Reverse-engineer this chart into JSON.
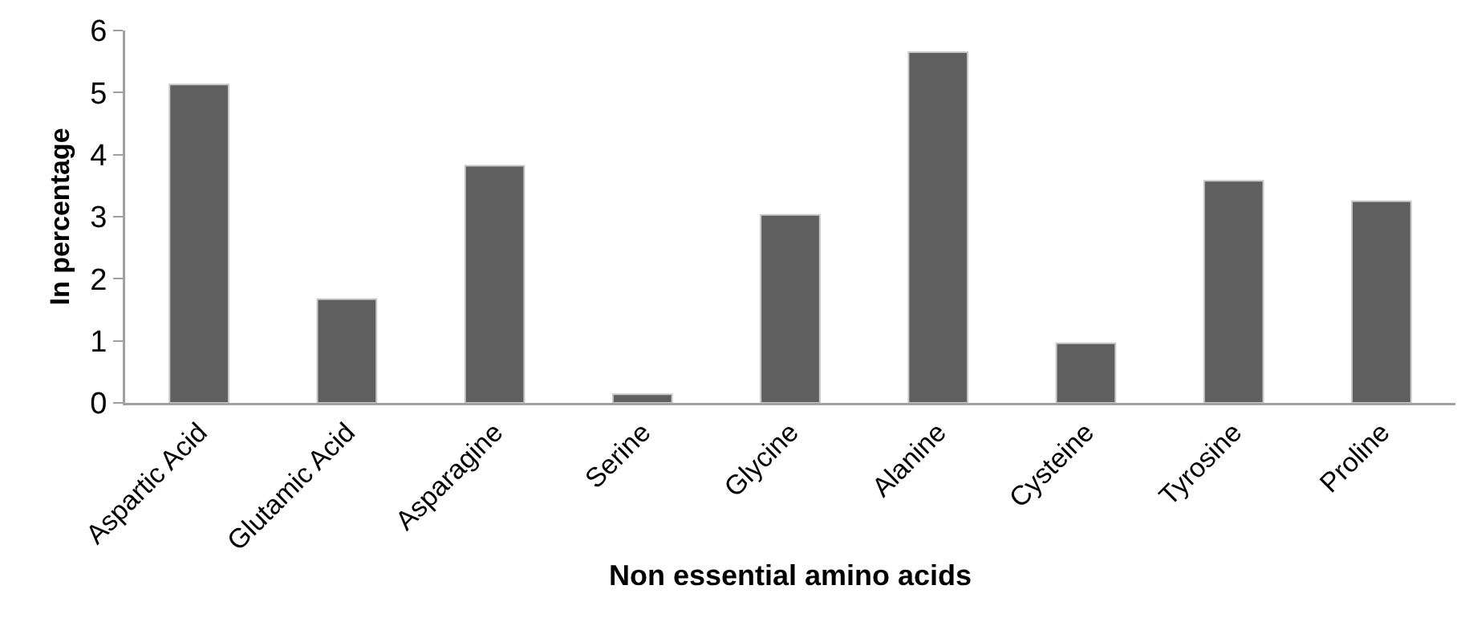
{
  "chart_data": {
    "type": "bar",
    "xlabel": "Non essential amino acids",
    "ylabel": "In percentage",
    "categories": [
      "Aspartic Acid",
      "Glutamic Acid",
      "Asparagine",
      "Serine",
      "Glycine",
      "Alanine",
      "Cysteine",
      "Tyrosine",
      "Proline"
    ],
    "values": [
      5.13,
      1.67,
      3.82,
      0.14,
      3.03,
      5.65,
      0.96,
      3.58,
      3.25
    ],
    "color": "#5f5f5f",
    "ylim": [
      0,
      6
    ],
    "yticks": [
      0,
      1,
      2,
      3,
      4,
      5,
      6
    ]
  }
}
